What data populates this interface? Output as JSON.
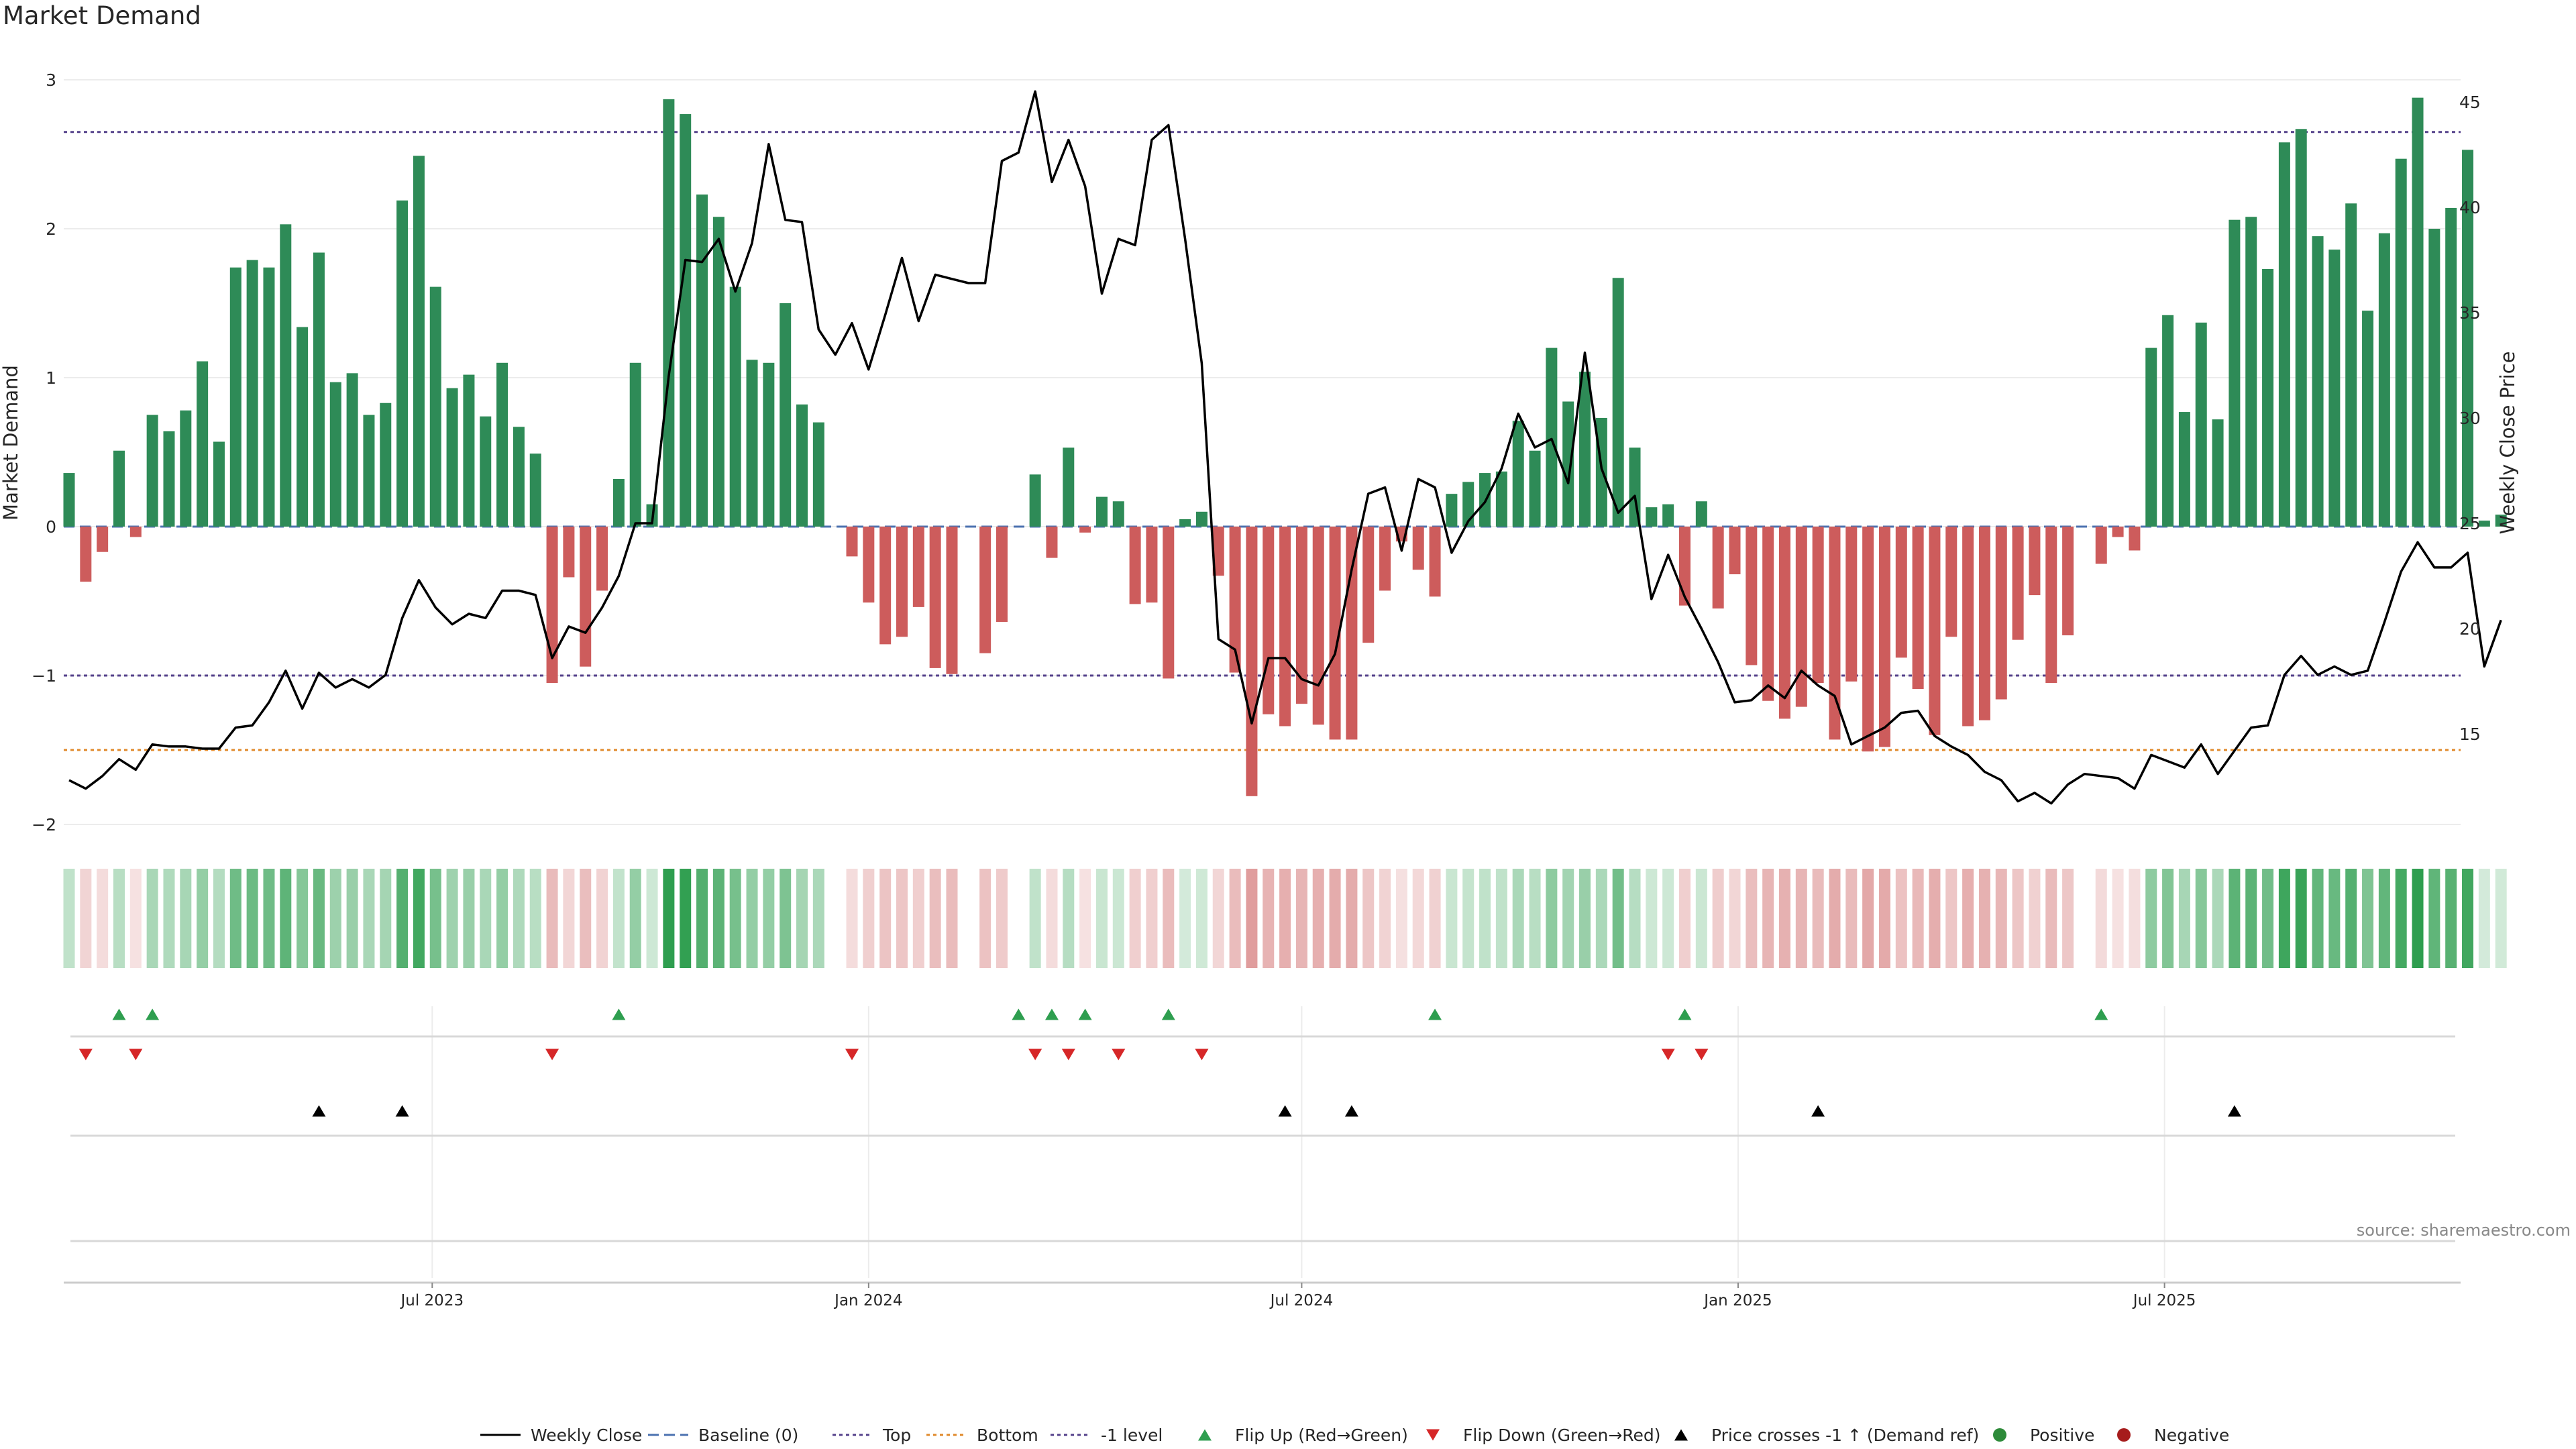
{
  "chart_data": {
    "type": "bar",
    "title": "Market Demand",
    "ylabel": "Market Demand",
    "y2label": "Weekly Close Price",
    "ylim": [
      -2.2,
      3.05
    ],
    "y2lim": [
      10.5,
      46.2
    ],
    "yticks": [
      "3",
      "2",
      "1",
      "0",
      "−1",
      "−2"
    ],
    "y2ticks": [
      "45",
      "40",
      "35",
      "30",
      "25",
      "20",
      "15"
    ],
    "xticks": [
      "Jul 2023",
      "Jan 2024",
      "Jul 2024",
      "Jan 2025",
      "Jul 2025"
    ],
    "reference_lines": {
      "top": 2.65,
      "bottom": -1.5,
      "minus_one": -1.0,
      "baseline": 0
    },
    "source": "source: sharemaestro.com",
    "legend": {
      "position": "bottom-center",
      "entries": [
        {
          "label": "Weekly Close",
          "kind": "line",
          "color": "#000000"
        },
        {
          "label": "Baseline (0)",
          "kind": "dashed",
          "color": "#4c72b0"
        },
        {
          "label": "Top",
          "kind": "dotted",
          "color": "#55428b"
        },
        {
          "label": "Bottom",
          "kind": "dotted",
          "color": "#e08a2c"
        },
        {
          "label": "-1 level",
          "kind": "dotted",
          "color": "#55428b"
        },
        {
          "label": "Flip Up (Red→Green)",
          "kind": "tri-up",
          "color": "#2e9e4f"
        },
        {
          "label": "Flip Down (Green→Red)",
          "kind": "tri-down",
          "color": "#d62728"
        },
        {
          "label": "Price crosses -1 ↑ (Demand ref)",
          "kind": "tri-up",
          "color": "#000000"
        },
        {
          "label": "Positive",
          "kind": "dot",
          "color": "#2e8b3a"
        },
        {
          "label": "Negative",
          "kind": "dot",
          "color": "#a61c1c"
        }
      ]
    },
    "colors": {
      "positive_bar": "#2e8b57",
      "negative_bar": "#cd5c5c",
      "price_line": "#000000"
    },
    "demand": [
      0.36,
      -0.37,
      -0.17,
      0.51,
      -0.07,
      0.75,
      0.64,
      0.78,
      1.11,
      0.57,
      1.74,
      1.79,
      1.74,
      2.03,
      1.34,
      1.84,
      0.97,
      1.03,
      0.75,
      0.83,
      2.19,
      2.49,
      1.61,
      0.93,
      1.02,
      0.74,
      1.1,
      0.67,
      0.49,
      -1.05,
      -0.34,
      -0.94,
      -0.43,
      0.32,
      1.1,
      0.15,
      2.87,
      2.77,
      2.23,
      2.08,
      1.61,
      1.12,
      1.1,
      1.5,
      0.82,
      0.7,
      0,
      -0.2,
      -0.51,
      -0.79,
      -0.74,
      -0.54,
      -0.95,
      -0.99,
      0,
      -0.85,
      -0.64,
      0,
      0.35,
      -0.21,
      0.53,
      -0.04,
      0.2,
      0.17,
      -0.52,
      -0.51,
      -1.02,
      0.05,
      0.1,
      -0.33,
      -0.98,
      -1.81,
      -1.26,
      -1.34,
      -1.19,
      -1.33,
      -1.43,
      -1.43,
      -0.78,
      -0.43,
      -0.1,
      -0.29,
      -0.47,
      0.22,
      0.3,
      0.36,
      0.37,
      0.71,
      0.51,
      1.2,
      0.84,
      1.04,
      0.73,
      1.67,
      0.53,
      0.13,
      0.15,
      -0.53,
      0.17,
      -0.55,
      -0.32,
      -0.93,
      -1.17,
      -1.29,
      -1.21,
      -1.05,
      -1.43,
      -1.04,
      -1.51,
      -1.48,
      -0.88,
      -1.09,
      -1.4,
      -0.74,
      -1.34,
      -1.3,
      -1.16,
      -0.76,
      -0.46,
      -1.05,
      -0.73,
      0,
      -0.25,
      -0.07,
      -0.16,
      1.2,
      1.42,
      0.77,
      1.37,
      0.72,
      2.06,
      2.08,
      1.73,
      2.58,
      2.67,
      1.95,
      1.86,
      2.17,
      1.45,
      1.97,
      2.47,
      2.88,
      2,
      2.14,
      2.53,
      0.04,
      0.08
    ],
    "price": [
      12.8,
      12.4,
      13,
      13.8,
      13.3,
      14.5,
      14.4,
      14.4,
      14.3,
      14.3,
      15.3,
      15.4,
      16.5,
      18,
      16.2,
      17.9,
      17.2,
      17.6,
      17.2,
      17.8,
      20.5,
      22.3,
      21,
      20.2,
      20.7,
      20.5,
      21.8,
      21.8,
      21.6,
      18.6,
      20.1,
      19.8,
      21,
      22.5,
      25,
      25,
      32,
      37.5,
      37.4,
      38.5,
      36,
      38.3,
      43,
      39.4,
      39.3,
      34.2,
      33,
      34.5,
      32.3,
      34.9,
      37.6,
      34.6,
      36.8,
      36.6,
      36.4,
      36.4,
      42.2,
      42.6,
      45.5,
      41.2,
      43.2,
      41,
      35.9,
      38.5,
      38.2,
      43.2,
      43.9,
      38.5,
      32.6,
      19.5,
      19,
      15.5,
      18.6,
      18.6,
      17.6,
      17.3,
      18.8,
      22.8,
      26.4,
      26.7,
      23.7,
      27.1,
      26.7,
      23.6,
      25.1,
      26,
      27.6,
      30.2,
      28.6,
      29,
      26.9,
      33.1,
      27.6,
      25.5,
      26.3,
      21.4,
      23.5,
      21.5,
      20,
      18.4,
      16.5,
      16.6,
      17.3,
      16.7,
      18,
      17.3,
      16.8,
      14.5,
      14.9,
      15.3,
      16,
      16.1,
      14.9,
      14.4,
      14,
      13.2,
      12.8,
      11.8,
      12.2,
      11.7,
      12.6,
      13.1,
      13,
      12.9,
      12.4,
      14,
      13.7,
      13.4,
      14.5,
      13.1,
      14.2,
      15.3,
      15.4,
      17.8,
      18.7,
      17.8,
      18.2,
      17.8,
      18,
      20.3,
      22.7,
      24.1,
      22.9,
      22.9,
      23.6,
      18.2,
      20.4
    ],
    "flip_up_index": [
      3,
      5,
      33,
      57,
      59,
      61,
      66,
      82,
      97,
      122
    ],
    "flip_down_index": [
      1,
      4,
      29,
      47,
      58,
      60,
      63,
      68,
      96,
      98
    ],
    "price_cross_index": [
      15,
      20,
      73,
      77,
      105,
      130
    ]
  }
}
